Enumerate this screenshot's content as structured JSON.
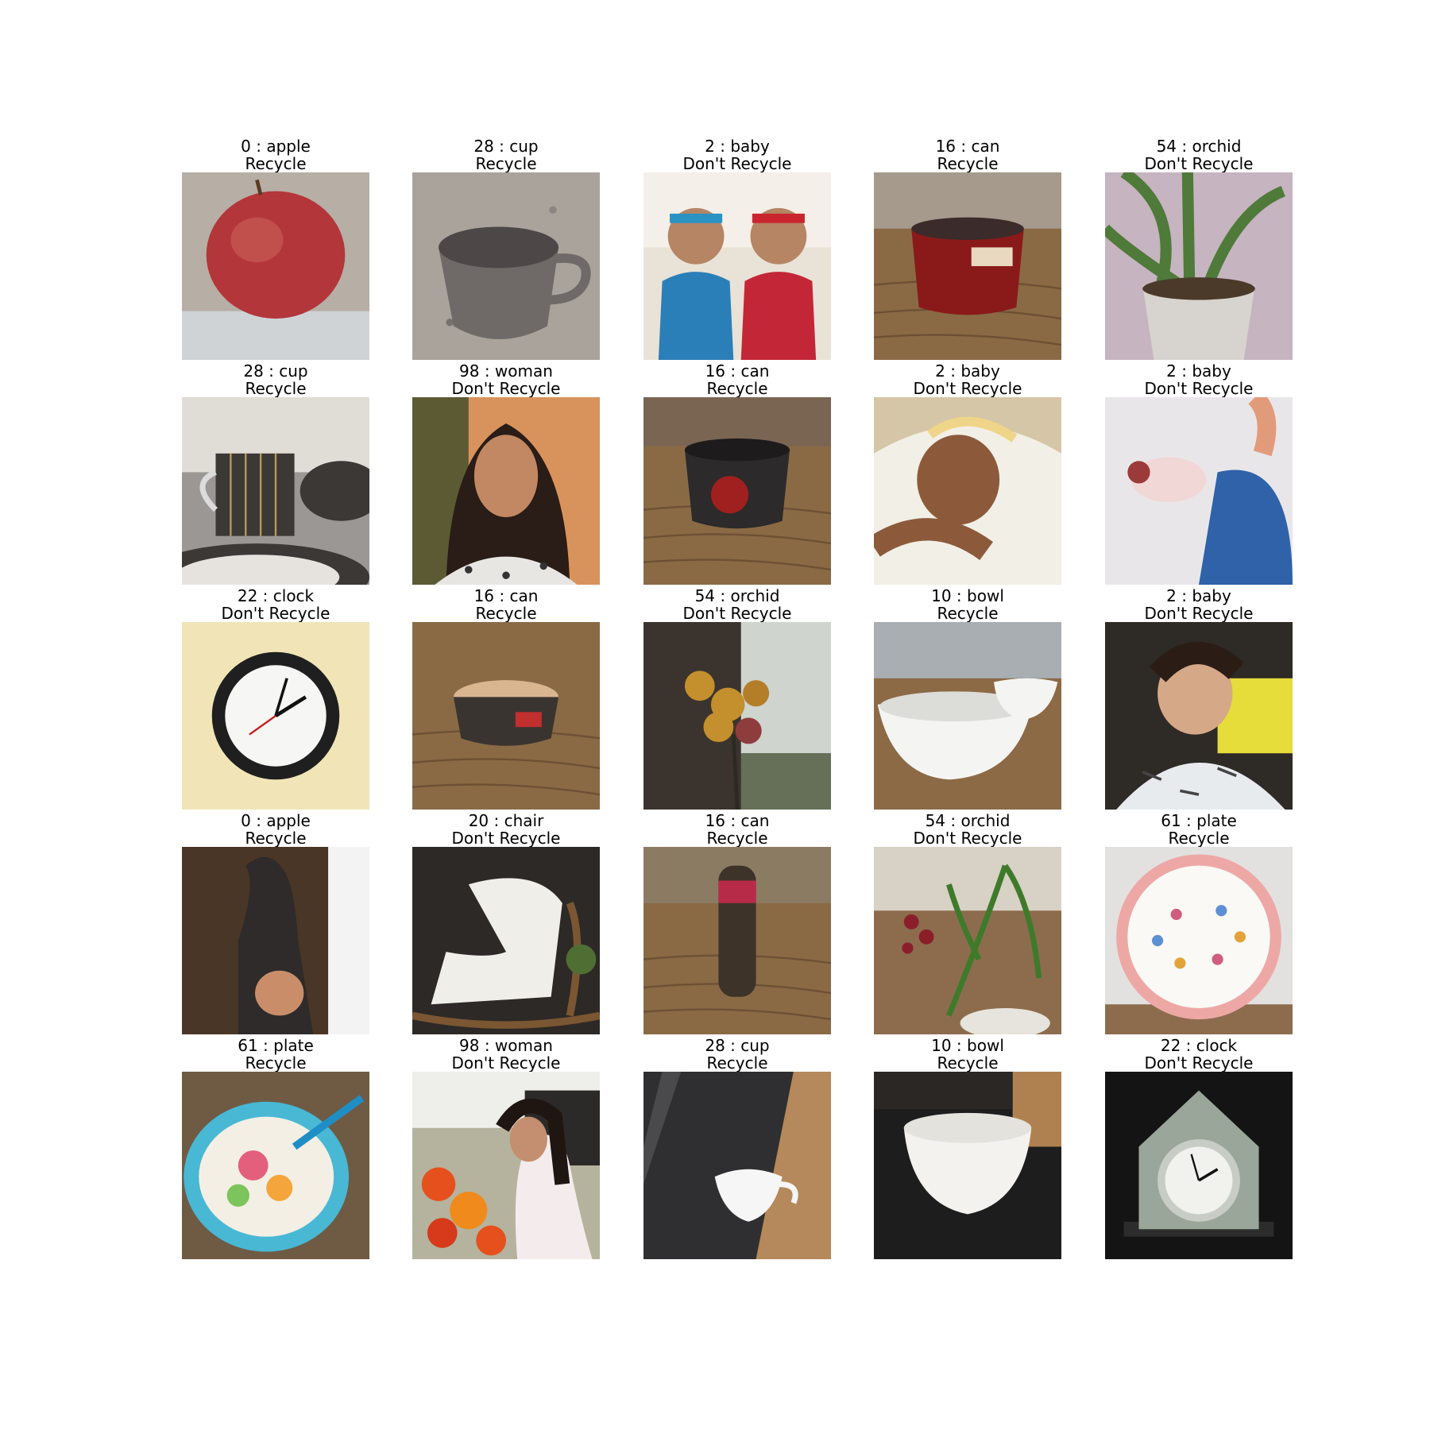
{
  "cells": [
    {
      "label": "0 : apple",
      "verdict": "Recycle",
      "photo": "apple"
    },
    {
      "label": "28 : cup",
      "verdict": "Recycle",
      "photo": "cup-gray"
    },
    {
      "label": "2 : baby",
      "verdict": "Don't Recycle",
      "photo": "two-babies"
    },
    {
      "label": "16 : can",
      "verdict": "Recycle",
      "photo": "tomato-can"
    },
    {
      "label": "54 : orchid",
      "verdict": "Don't Recycle",
      "photo": "orchid-pot"
    },
    {
      "label": "28 : cup",
      "verdict": "Recycle",
      "photo": "cup-striped"
    },
    {
      "label": "98 : woman",
      "verdict": "Don't Recycle",
      "photo": "woman-selfie"
    },
    {
      "label": "16 : can",
      "verdict": "Recycle",
      "photo": "tomato-can-2"
    },
    {
      "label": "2 : baby",
      "verdict": "Don't Recycle",
      "photo": "baby-towel"
    },
    {
      "label": "2 : baby",
      "verdict": "Don't Recycle",
      "photo": "baby-held"
    },
    {
      "label": "22 : clock",
      "verdict": "Don't Recycle",
      "photo": "wall-clock"
    },
    {
      "label": "16 : can",
      "verdict": "Recycle",
      "photo": "open-can"
    },
    {
      "label": "54 : orchid",
      "verdict": "Don't Recycle",
      "photo": "orchid-window"
    },
    {
      "label": "10 : bowl",
      "verdict": "Recycle",
      "photo": "two-bowls"
    },
    {
      "label": "2 : baby",
      "verdict": "Don't Recycle",
      "photo": "toddler"
    },
    {
      "label": "0 : apple",
      "verdict": "Recycle",
      "photo": "statue-apple"
    },
    {
      "label": "20 : chair",
      "verdict": "Don't Recycle",
      "photo": "rocking-chair"
    },
    {
      "label": "16 : can",
      "verdict": "Recycle",
      "photo": "can-lying"
    },
    {
      "label": "54 : orchid",
      "verdict": "Don't Recycle",
      "photo": "orchid-red"
    },
    {
      "label": "61 : plate",
      "verdict": "Recycle",
      "photo": "plate-pink"
    },
    {
      "label": "61 : plate",
      "verdict": "Recycle",
      "photo": "plate-floral"
    },
    {
      "label": "98 : woman",
      "verdict": "Don't Recycle",
      "photo": "woman-flowers"
    },
    {
      "label": "28 : cup",
      "verdict": "Recycle",
      "photo": "cup-white"
    },
    {
      "label": "10 : bowl",
      "verdict": "Recycle",
      "photo": "bowl-white"
    },
    {
      "label": "22 : clock",
      "verdict": "Don't Recycle",
      "photo": "mantel-clock"
    }
  ]
}
